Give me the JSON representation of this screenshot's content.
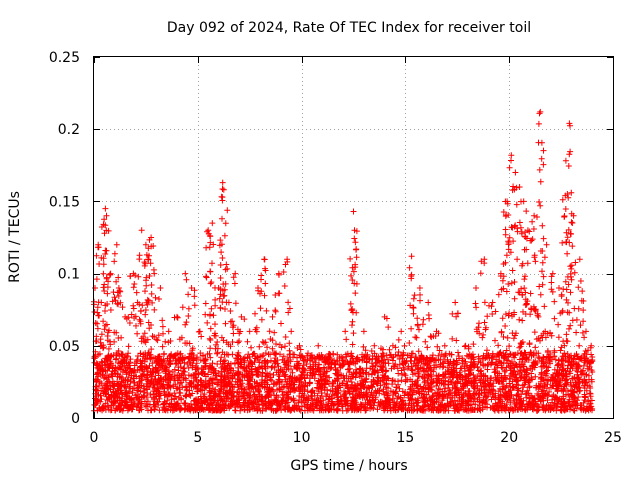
{
  "chart_data": {
    "type": "scatter",
    "title": "Day 092 of 2024, Rate Of TEC Index for receiver toil",
    "xlabel": "GPS time / hours",
    "ylabel": "ROTI / TECUs",
    "xlim": [
      0,
      25
    ],
    "ylim": [
      0,
      0.25
    ],
    "x_ticks": [
      0,
      5,
      10,
      15,
      20,
      25
    ],
    "x_tick_labels": [
      "0",
      "5",
      "10",
      "15",
      "20",
      "25"
    ],
    "y_ticks": [
      0,
      0.05,
      0.1,
      0.15,
      0.2,
      0.25
    ],
    "y_tick_labels": [
      "0",
      "0.05",
      "0.1",
      "0.15",
      "0.2",
      "0.25"
    ],
    "grid": true,
    "marker": "+",
    "color": "#ff0000",
    "series": [
      {
        "name": "ROTI",
        "x": [
          0.05,
          0.2,
          0.35,
          0.55,
          0.6,
          0.8,
          1.1,
          1.2,
          1.5,
          1.9,
          2.1,
          2.3,
          2.5,
          2.6,
          2.75,
          2.9,
          3.2,
          3.6,
          4.0,
          4.4,
          4.7,
          5.1,
          5.5,
          5.7,
          6.0,
          6.2,
          6.25,
          6.5,
          6.8,
          7.1,
          7.5,
          7.9,
          8.2,
          8.6,
          8.9,
          9.3,
          9.5,
          9.9,
          10.4,
          10.8,
          11.2,
          11.7,
          12.1,
          12.5,
          12.55,
          13.0,
          13.5,
          14.0,
          14.4,
          14.8,
          15.3,
          15.7,
          16.1,
          16.5,
          16.9,
          17.4,
          17.9,
          18.4,
          18.8,
          19.2,
          19.6,
          19.9,
          20.1,
          20.3,
          20.5,
          20.7,
          20.9,
          21.2,
          21.5,
          21.8,
          22.1,
          22.4,
          22.7,
          22.9,
          23.1,
          23.4,
          23.7,
          23.95
        ],
        "y": [
          0.09,
          0.12,
          0.08,
          0.145,
          0.14,
          0.1,
          0.12,
          0.09,
          0.07,
          0.1,
          0.08,
          0.13,
          0.12,
          0.11,
          0.125,
          0.1,
          0.09,
          0.06,
          0.07,
          0.1,
          0.09,
          0.06,
          0.13,
          0.135,
          0.09,
          0.163,
          0.158,
          0.08,
          0.1,
          0.07,
          0.06,
          0.09,
          0.11,
          0.07,
          0.1,
          0.11,
          0.06,
          0.05,
          0.04,
          0.05,
          0.04,
          0.04,
          0.06,
          0.143,
          0.13,
          0.06,
          0.05,
          0.07,
          0.05,
          0.06,
          0.112,
          0.09,
          0.08,
          0.06,
          0.05,
          0.08,
          0.05,
          0.09,
          0.11,
          0.08,
          0.1,
          0.15,
          0.182,
          0.17,
          0.16,
          0.15,
          0.13,
          0.14,
          0.212,
          0.12,
          0.1,
          0.09,
          0.154,
          0.204,
          0.14,
          0.11,
          0.06,
          0.05
        ]
      }
    ],
    "noise_floor": {
      "x_range": [
        0,
        24
      ],
      "y_range": [
        0.005,
        0.045
      ],
      "n_points": 3500
    }
  }
}
